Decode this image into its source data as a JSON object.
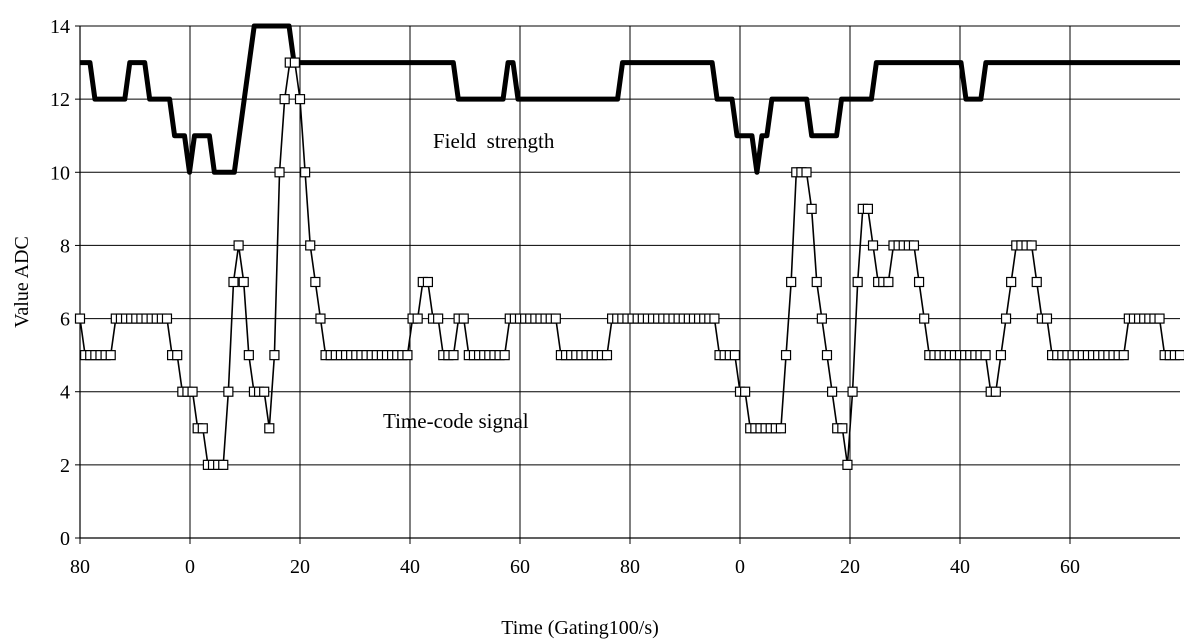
{
  "chart_data": {
    "type": "line",
    "title": "",
    "xlabel": "Time (Gating100/s)",
    "ylabel": "Value ADC",
    "x_tick_labels": [
      "80",
      "0",
      "20",
      "40",
      "60",
      "80",
      "0",
      "20",
      "40",
      "60"
    ],
    "y_ticks": [
      0,
      2,
      4,
      6,
      8,
      10,
      12,
      14
    ],
    "ylim": [
      0,
      14
    ],
    "grid": true,
    "legend": "none",
    "annotations": [
      {
        "text": "Field  strength",
        "series": "field"
      },
      {
        "text": "Time-code signal",
        "series": "timecode"
      }
    ],
    "series": [
      {
        "key": "field",
        "color": "#000000",
        "marker": "none",
        "values": [
          13,
          13,
          13,
          12,
          12,
          12,
          12,
          12,
          12,
          12,
          13,
          13,
          13,
          13,
          12,
          12,
          12,
          12,
          12,
          11,
          11,
          11,
          10,
          11,
          11,
          11,
          11,
          10,
          10,
          10,
          10,
          10,
          11,
          12,
          13,
          14,
          14,
          14,
          14,
          14,
          14,
          14,
          14,
          13,
          13,
          13,
          13,
          13,
          13,
          13,
          13,
          13,
          13,
          13,
          13,
          13,
          13,
          13,
          13,
          13,
          13,
          13,
          13,
          13,
          13,
          13,
          13,
          13,
          13,
          13,
          13,
          13,
          13,
          13,
          13,
          13,
          12,
          12,
          12,
          12,
          12,
          12,
          12,
          12,
          12,
          12,
          13,
          13,
          12,
          12,
          12,
          12,
          12,
          12,
          12,
          12,
          12,
          12,
          12,
          12,
          12,
          12,
          12,
          12,
          12,
          12,
          12,
          12,
          12,
          13,
          13,
          13,
          13,
          13,
          13,
          13,
          13,
          13,
          13,
          13,
          13,
          13,
          13,
          13,
          13,
          13,
          13,
          13,
          12,
          12,
          12,
          12,
          11,
          11,
          11,
          11,
          10,
          11,
          11,
          12,
          12,
          12,
          12,
          12,
          12,
          12,
          12,
          11,
          11,
          11,
          11,
          11,
          11,
          12,
          12,
          12,
          12,
          12,
          12,
          12,
          13,
          13,
          13,
          13,
          13,
          13,
          13,
          13,
          13,
          13,
          13,
          13,
          13,
          13,
          13,
          13,
          13,
          13,
          12,
          12,
          12,
          12,
          13,
          13,
          13,
          13,
          13,
          13,
          13,
          13,
          13,
          13,
          13,
          13,
          13,
          13,
          13,
          13,
          13,
          13,
          13,
          13,
          13,
          13,
          13,
          13,
          13,
          13,
          13,
          13,
          13,
          13,
          13,
          13,
          13,
          13,
          13,
          13,
          13,
          13,
          13,
          13
        ]
      },
      {
        "key": "timecode",
        "color": "#000000",
        "marker": "square",
        "values": [
          6,
          5,
          5,
          5,
          5,
          5,
          5,
          6,
          6,
          6,
          6,
          6,
          6,
          6,
          6,
          6,
          6,
          6,
          5,
          5,
          4,
          4,
          4,
          3,
          3,
          2,
          2,
          2,
          2,
          4,
          7,
          8,
          7,
          5,
          4,
          4,
          4,
          3,
          5,
          10,
          12,
          13,
          13,
          12,
          10,
          8,
          7,
          6,
          5,
          5,
          5,
          5,
          5,
          5,
          5,
          5,
          5,
          5,
          5,
          5,
          5,
          5,
          5,
          5,
          5,
          6,
          6,
          7,
          7,
          6,
          6,
          5,
          5,
          5,
          6,
          6,
          5,
          5,
          5,
          5,
          5,
          5,
          5,
          5,
          6,
          6,
          6,
          6,
          6,
          6,
          6,
          6,
          6,
          6,
          5,
          5,
          5,
          5,
          5,
          5,
          5,
          5,
          5,
          5,
          6,
          6,
          6,
          6,
          6,
          6,
          6,
          6,
          6,
          6,
          6,
          6,
          6,
          6,
          6,
          6,
          6,
          6,
          6,
          6,
          6,
          5,
          5,
          5,
          5,
          4,
          4,
          3,
          3,
          3,
          3,
          3,
          3,
          3,
          5,
          7,
          10,
          10,
          10,
          9,
          7,
          6,
          5,
          4,
          3,
          3,
          2,
          4,
          7,
          9,
          9,
          8,
          7,
          7,
          7,
          8,
          8,
          8,
          8,
          8,
          7,
          6,
          5,
          5,
          5,
          5,
          5,
          5,
          5,
          5,
          5,
          5,
          5,
          5,
          4,
          4,
          5,
          6,
          7,
          8,
          8,
          8,
          8,
          7,
          6,
          6,
          5,
          5,
          5,
          5,
          5,
          5,
          5,
          5,
          5,
          5,
          5,
          5,
          5,
          5,
          5,
          6,
          6,
          6,
          6,
          6,
          6,
          6,
          5,
          5,
          5,
          5
        ]
      }
    ]
  }
}
